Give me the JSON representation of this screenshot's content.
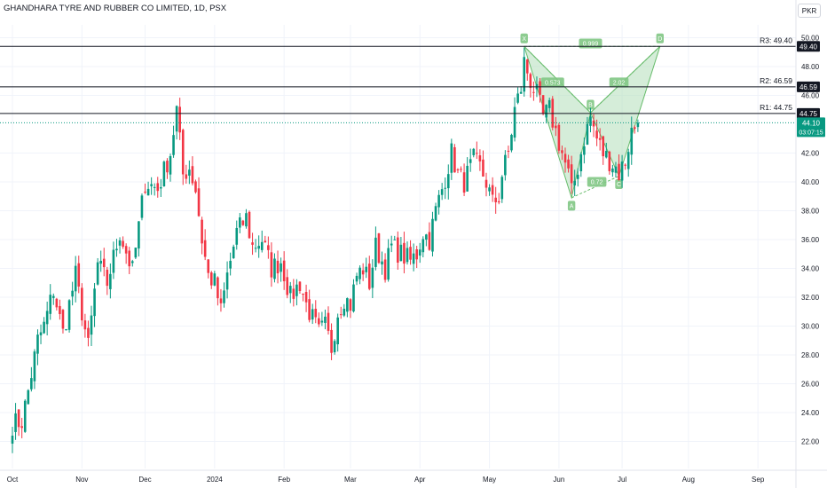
{
  "header": {
    "title": "GHANDHARA TYRE AND RUBBER CO LIMITED, 1D, PSX",
    "currency": "PKR"
  },
  "colors": {
    "up": "#089981",
    "down": "#f23645",
    "pattern_fill": "#b2dfb9",
    "pattern_stroke": "#66bb6a",
    "level_line": "#131722",
    "price_tag": "#089981"
  },
  "chart_data": {
    "type": "candlestick",
    "ylim": [
      21,
      51
    ],
    "y_ticks": [
      {
        "value": 22,
        "label": "22.00"
      },
      {
        "value": 24,
        "label": "24.00"
      },
      {
        "value": 26,
        "label": "26.00"
      },
      {
        "value": 28,
        "label": "28.00"
      },
      {
        "value": 30,
        "label": "30.00"
      },
      {
        "value": 32,
        "label": "32.00"
      },
      {
        "value": 34,
        "label": "34.00"
      },
      {
        "value": 36,
        "label": "36.00"
      },
      {
        "value": 38,
        "label": "38.00"
      },
      {
        "value": 40,
        "label": "40.00"
      },
      {
        "value": 42,
        "label": "42.00"
      },
      {
        "value": 46,
        "label": "46.00"
      },
      {
        "value": 48,
        "label": "48.00"
      },
      {
        "value": 50,
        "label": "50.00"
      }
    ],
    "x_ticks": [
      "Oct",
      "Nov",
      "Dec",
      "2024",
      "Feb",
      "Mar",
      "Apr",
      "May",
      "Jun",
      "Jul",
      "Aug",
      "Sep"
    ],
    "x_tick_index": [
      0,
      22,
      42,
      64,
      86,
      107,
      129,
      151,
      173,
      193,
      214,
      236
    ],
    "last_index": 198,
    "last_price": {
      "value": 44.1,
      "label": "44.10",
      "countdown": "03:07:15"
    },
    "levels": [
      {
        "name": "R3",
        "value": 49.4,
        "label": "R3: 49.40",
        "tag": "49.40"
      },
      {
        "name": "R2",
        "value": 46.59,
        "label": "R2: 46.59",
        "tag": "46.59"
      },
      {
        "name": "R1",
        "value": 44.75,
        "label": "R1: 44.75",
        "tag": "44.75"
      }
    ],
    "pattern": {
      "points": [
        {
          "label": "X",
          "index": 162,
          "value": 49.4
        },
        {
          "label": "A",
          "index": 177,
          "value": 38.9
        },
        {
          "label": "B",
          "index": 183,
          "value": 44.8
        },
        {
          "label": "C",
          "index": 192,
          "value": 40.4
        },
        {
          "label": "D",
          "index": 205,
          "value": 49.4
        }
      ],
      "ratios": [
        {
          "label": "0.573",
          "index": 171,
          "value": 46.9
        },
        {
          "label": "0.72",
          "index": 185,
          "value": 40.0
        },
        {
          "label": "2.02",
          "index": 192,
          "value": 46.9
        },
        {
          "label": "0.999",
          "index": 183,
          "value": 49.6
        }
      ]
    },
    "anchors": [
      [
        0,
        23.2
      ],
      [
        3,
        23.4
      ],
      [
        5,
        25.5
      ],
      [
        8,
        29.0
      ],
      [
        10,
        30.0
      ],
      [
        13,
        32.5
      ],
      [
        16,
        29.5
      ],
      [
        20,
        33.5
      ],
      [
        24,
        28.5
      ],
      [
        27,
        34.3
      ],
      [
        30,
        33.0
      ],
      [
        34,
        36.5
      ],
      [
        38,
        33.8
      ],
      [
        42,
        40.0
      ],
      [
        46,
        39.5
      ],
      [
        50,
        42.0
      ],
      [
        52,
        45.0
      ],
      [
        54,
        40.5
      ],
      [
        56,
        41.0
      ],
      [
        58,
        39.5
      ],
      [
        60,
        36.0
      ],
      [
        62,
        33.5
      ],
      [
        64,
        33.0
      ],
      [
        66,
        31.0
      ],
      [
        68,
        33.5
      ],
      [
        71,
        36.5
      ],
      [
        74,
        37.5
      ],
      [
        76,
        35.5
      ],
      [
        79,
        36.0
      ],
      [
        82,
        34.0
      ],
      [
        85,
        34.5
      ],
      [
        88,
        32.0
      ],
      [
        91,
        33.0
      ],
      [
        93,
        31.5
      ],
      [
        95,
        30.5
      ],
      [
        97,
        29.5
      ],
      [
        99,
        30.0
      ],
      [
        101,
        28.5
      ],
      [
        103,
        31.0
      ],
      [
        105,
        32.0
      ],
      [
        107,
        31.5
      ],
      [
        109,
        33.5
      ],
      [
        111,
        34.0
      ],
      [
        113,
        33.0
      ],
      [
        115,
        35.5
      ],
      [
        118,
        34.0
      ],
      [
        120,
        35.5
      ],
      [
        123,
        35.0
      ],
      [
        126,
        34.5
      ],
      [
        128,
        35.0
      ],
      [
        130,
        36.5
      ],
      [
        132,
        36.0
      ],
      [
        134,
        38.0
      ],
      [
        136,
        39.5
      ],
      [
        139,
        42.0
      ],
      [
        141,
        40.5
      ],
      [
        143,
        40.0
      ],
      [
        146,
        41.5
      ],
      [
        148,
        41.0
      ],
      [
        150,
        40.0
      ],
      [
        152,
        38.5
      ],
      [
        154,
        39.0
      ],
      [
        155,
        40.5
      ],
      [
        157,
        42.0
      ],
      [
        159,
        45.0
      ],
      [
        161,
        46.5
      ],
      [
        162,
        48.3
      ],
      [
        164,
        47.0
      ],
      [
        166,
        46.0
      ],
      [
        168,
        44.5
      ],
      [
        170,
        45.0
      ],
      [
        172,
        43.5
      ],
      [
        174,
        42.0
      ],
      [
        176,
        40.5
      ],
      [
        177,
        39.2
      ],
      [
        179,
        41.0
      ],
      [
        181,
        43.0
      ],
      [
        183,
        44.5
      ],
      [
        185,
        43.0
      ],
      [
        187,
        42.0
      ],
      [
        189,
        41.5
      ],
      [
        191,
        41.0
      ],
      [
        192,
        40.6
      ],
      [
        194,
        41.5
      ],
      [
        196,
        43.5
      ],
      [
        198,
        44.1
      ]
    ]
  }
}
